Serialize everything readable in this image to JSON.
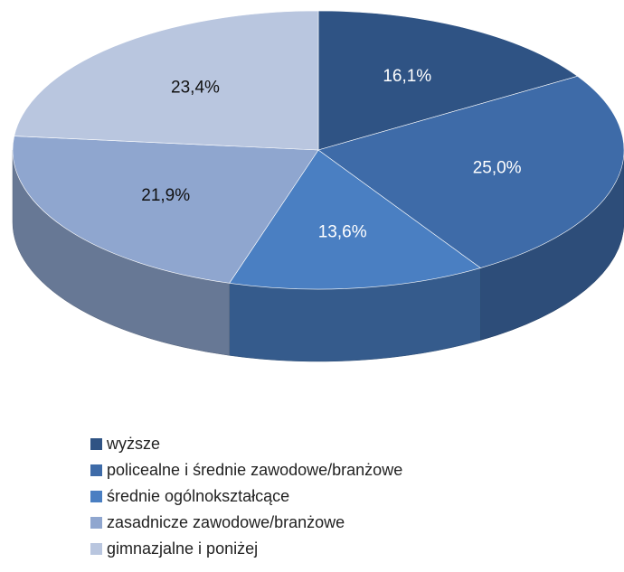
{
  "chart_data": {
    "type": "pie",
    "categories": [
      "wyższe",
      "policealne i średnie zawodowe/branżowe",
      "średnie ogólnokształcące",
      "zasadnicze zawodowe/branżowe",
      "gimnazjalne i poniżej"
    ],
    "values": [
      16.1,
      25.0,
      13.6,
      21.9,
      23.4
    ],
    "value_labels": [
      "16,1%",
      "25,0%",
      "13,6%",
      "21,9%",
      "23,4%"
    ],
    "colors": [
      "#2f5384",
      "#3e6ba8",
      "#4a7fc2",
      "#8fa6cf",
      "#b9c6df"
    ],
    "legend": "bottom"
  }
}
